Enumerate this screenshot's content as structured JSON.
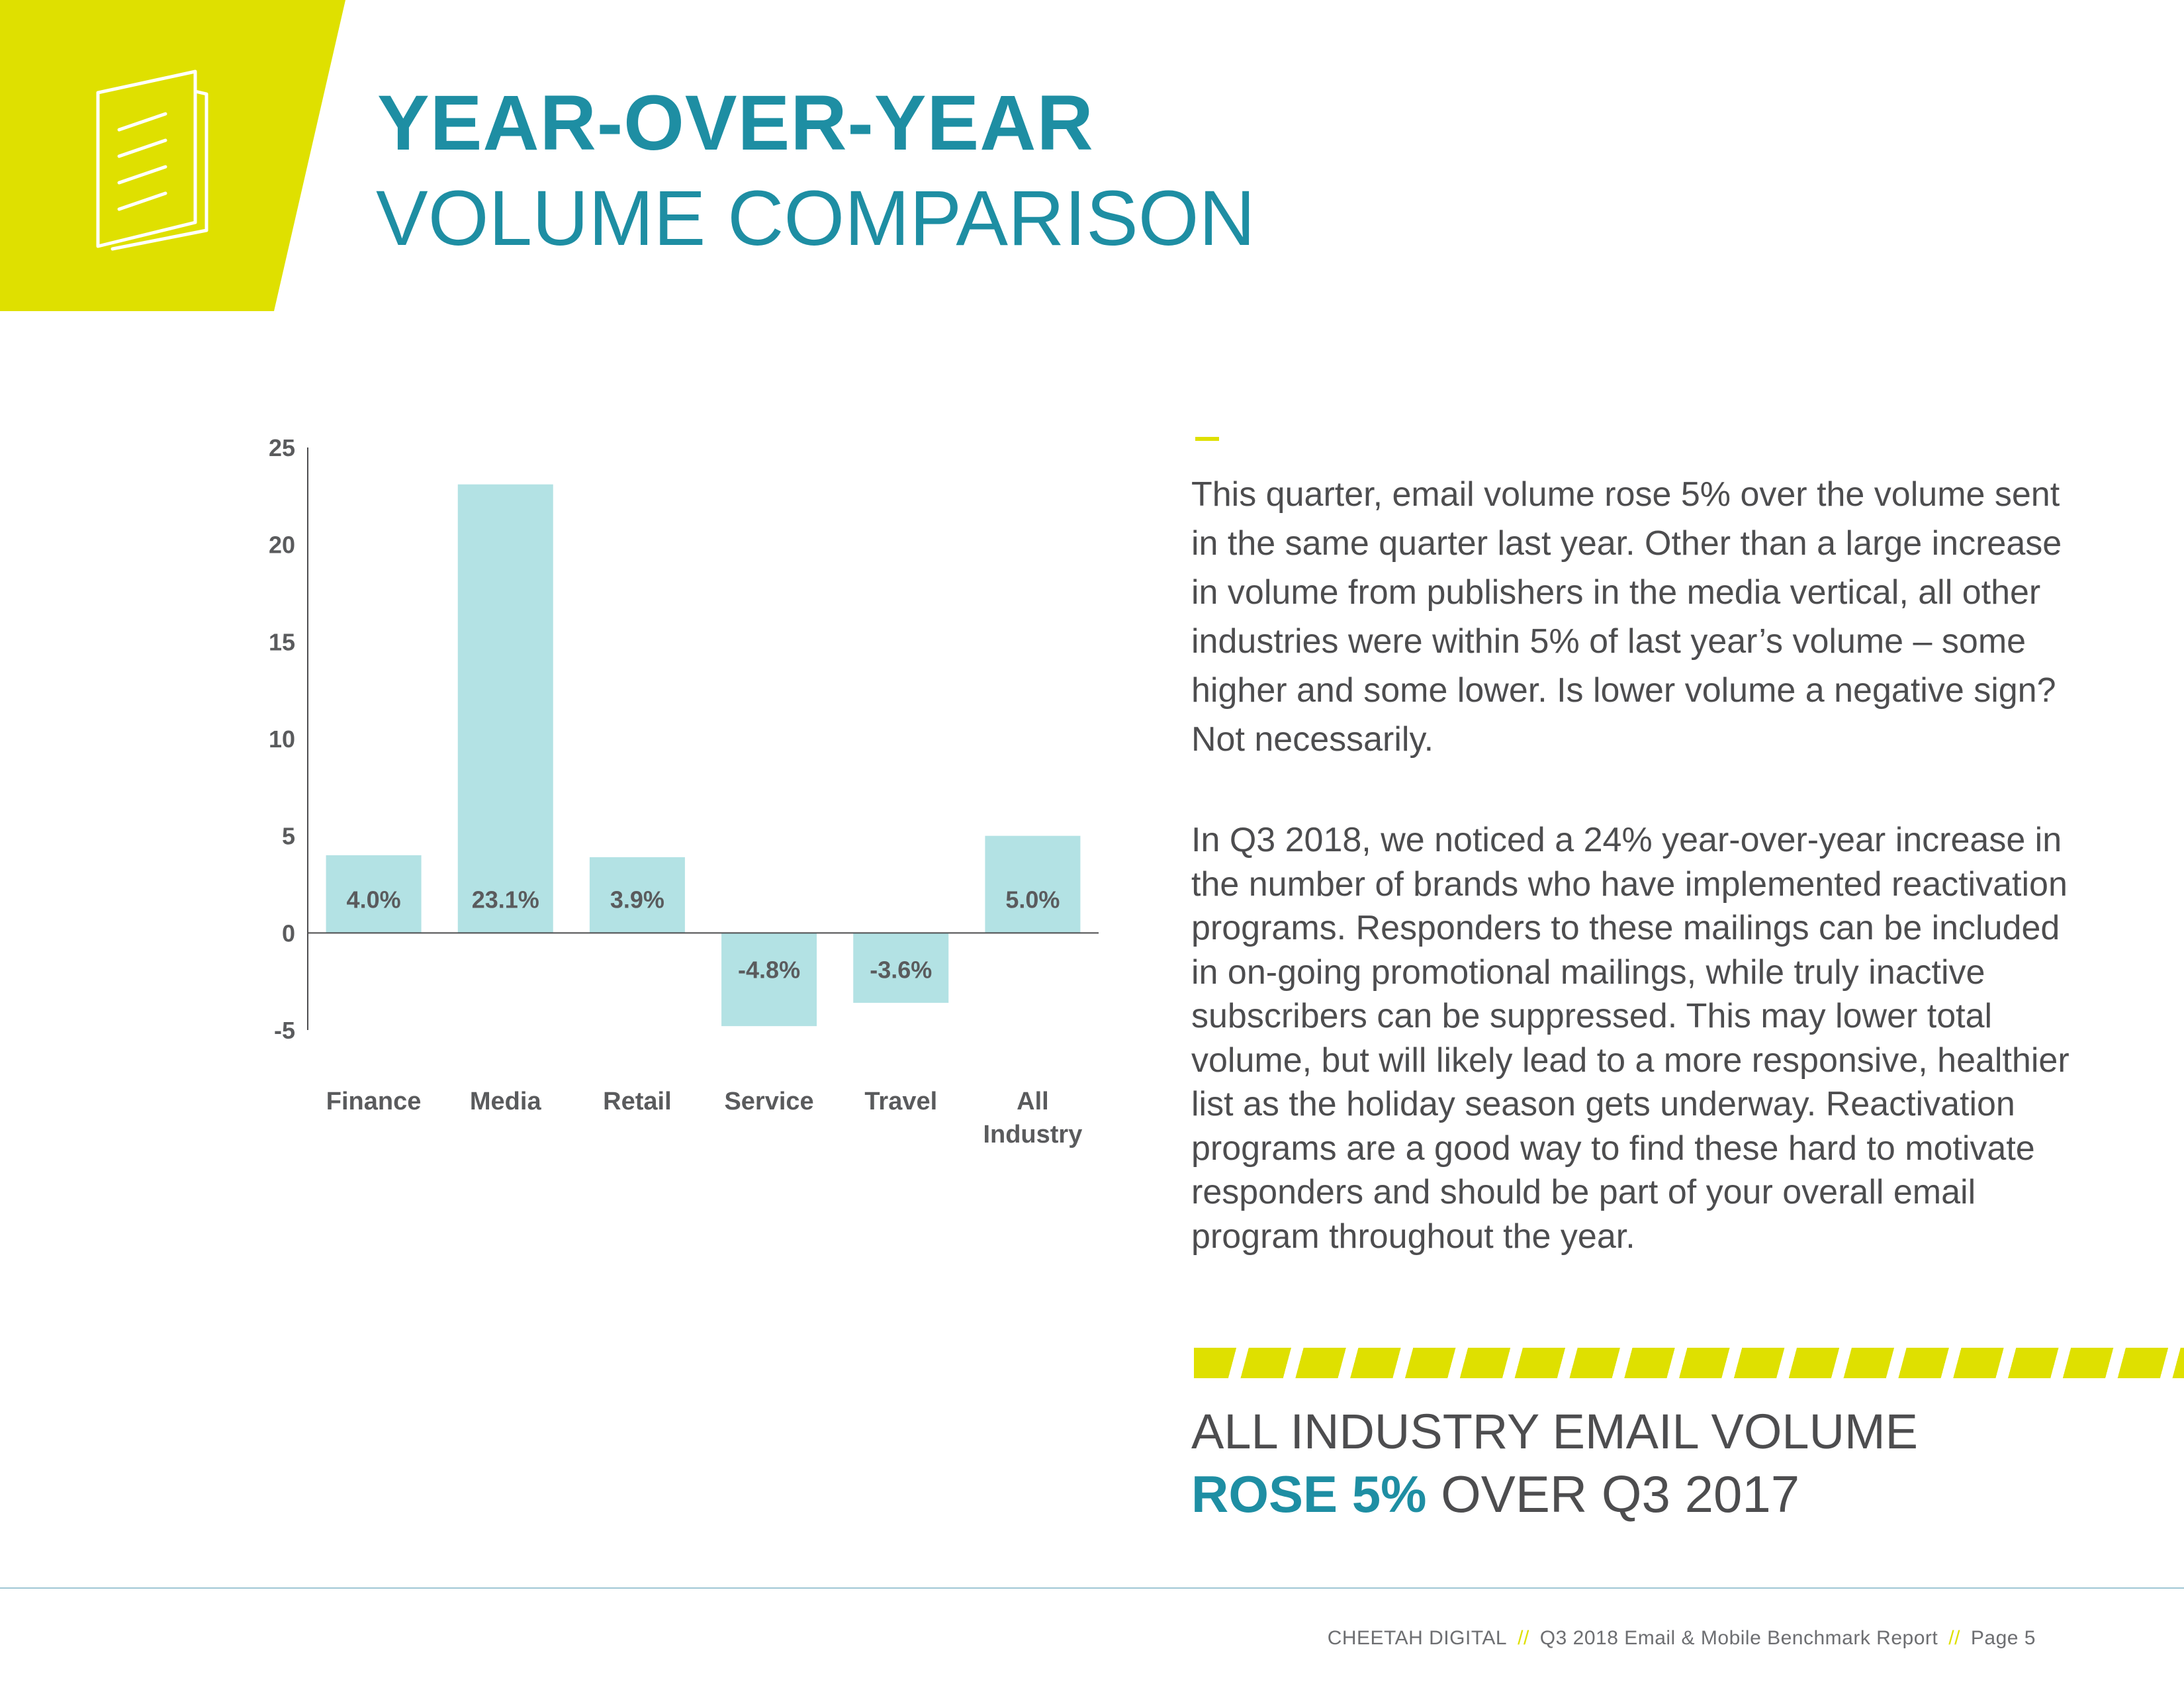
{
  "header": {
    "title_bold": "YEAR-OVER-YEAR",
    "title_light": "VOLUME COMPARISON",
    "icon": "document-icon",
    "accent_color": "#dfe000",
    "brand_color": "#1e8ea3"
  },
  "chart_data": {
    "type": "bar",
    "categories": [
      "Finance",
      "Media",
      "Retail",
      "Service",
      "Travel",
      "All Industry"
    ],
    "category_lines": [
      [
        "Finance"
      ],
      [
        "Media"
      ],
      [
        "Retail"
      ],
      [
        "Service"
      ],
      [
        "Travel"
      ],
      [
        "All",
        "Industry"
      ]
    ],
    "values": [
      4.0,
      23.1,
      3.9,
      -4.8,
      -3.6,
      5.0
    ],
    "data_labels": [
      "4.0%",
      "23.1%",
      "3.9%",
      "-4.8%",
      "-3.6%",
      "5.0%"
    ],
    "y_ticks": [
      25,
      20,
      15,
      10,
      5,
      0,
      -5
    ],
    "ylim": [
      -5,
      25
    ],
    "title": "",
    "xlabel": "",
    "ylabel": "",
    "grid": false,
    "bar_color": "#b3e2e4",
    "label_color": "#5a5b5d"
  },
  "body": {
    "paragraph1": "This quarter, email volume rose 5% over the volume sent in the same quarter last year. Other than a large increase in volume from publishers in the media vertical, all other industries were within 5% of last year’s volume – some higher and some lower. Is lower volume a negative sign? Not necessarily.",
    "paragraph2": "In Q3 2018, we noticed a 24% year-over-year increase in the number of brands who have implemented reactivation programs. Responders to these mailings can be included in on-going promotional mailings, while truly inactive subscribers can be suppressed. This may lower total volume, but will likely lead to a more responsive, healthier list as the holiday season gets underway. Reactivation programs are a good way to find these hard to motivate responders and should be part of your overall email program throughout the year."
  },
  "callout": {
    "line1": "ALL INDUSTRY EMAIL VOLUME",
    "highlight": "ROSE 5%",
    "rest": " OVER Q3 2017"
  },
  "footer": {
    "company": "CHEETAH DIGITAL",
    "separator": "//",
    "report": "Q3 2018 Email & Mobile Benchmark Report",
    "page": "Page 5"
  }
}
